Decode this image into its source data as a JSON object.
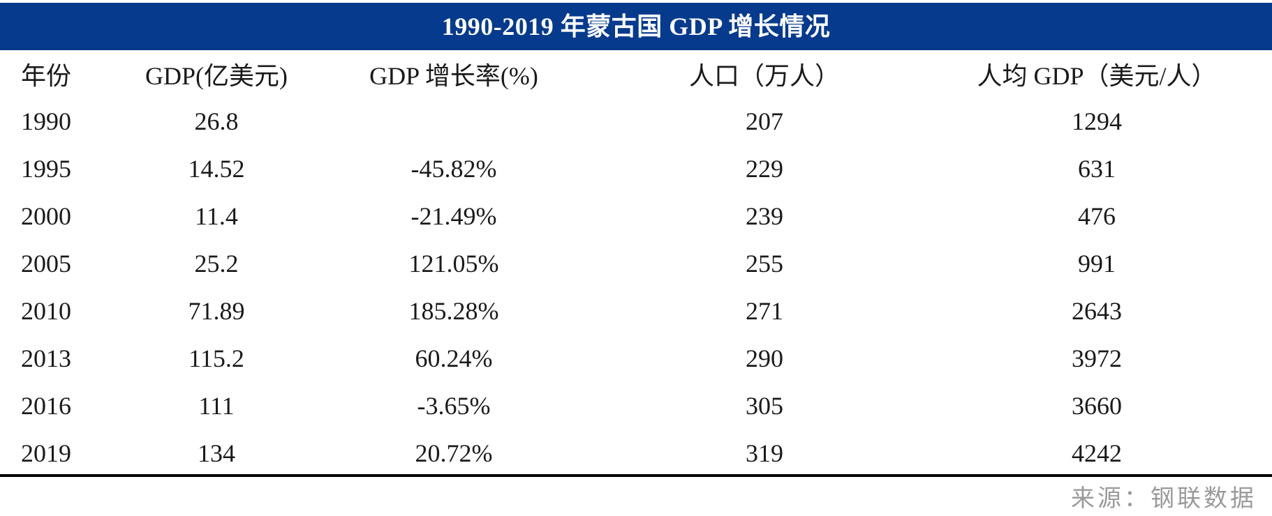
{
  "chart_data": {
    "type": "table",
    "title": "1990-2019 年蒙古国 GDP 增长情况",
    "columns": [
      "年份",
      "GDP(亿美元)",
      "GDP 增长率(%)",
      "人口（万人）",
      "人均 GDP（美元/人）"
    ],
    "rows": [
      [
        "1990",
        "26.8",
        "",
        "207",
        "1294"
      ],
      [
        "1995",
        "14.52",
        "-45.82%",
        "229",
        "631"
      ],
      [
        "2000",
        "11.4",
        "-21.49%",
        "239",
        "476"
      ],
      [
        "2005",
        "25.2",
        "121.05%",
        "255",
        "991"
      ],
      [
        "2010",
        "71.89",
        "185.28%",
        "271",
        "2643"
      ],
      [
        "2013",
        "115.2",
        "60.24%",
        "290",
        "3972"
      ],
      [
        "2016",
        "111",
        "-3.65%",
        "305",
        "3660"
      ],
      [
        "2019",
        "134",
        "20.72%",
        "319",
        "4242"
      ]
    ],
    "source": "来源：钢联数据"
  },
  "colors": {
    "title_background": "#063a8c",
    "title_text": "#ffffff",
    "body_text": "#1a1a1a",
    "source_text": "#9a9a9a",
    "rule": "#000000"
  }
}
